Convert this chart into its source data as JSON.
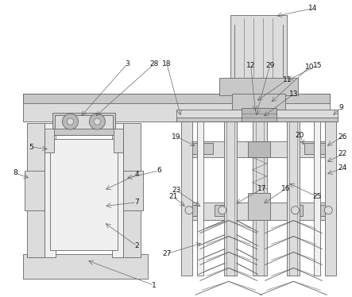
{
  "bg_color": "#ffffff",
  "lc": "#666666",
  "lc2": "#888888",
  "fc_light": "#f0f0f0",
  "fc_mid": "#dcdcdc",
  "fc_dark": "#c8c8c8",
  "fc_darker": "#b8b8b8"
}
